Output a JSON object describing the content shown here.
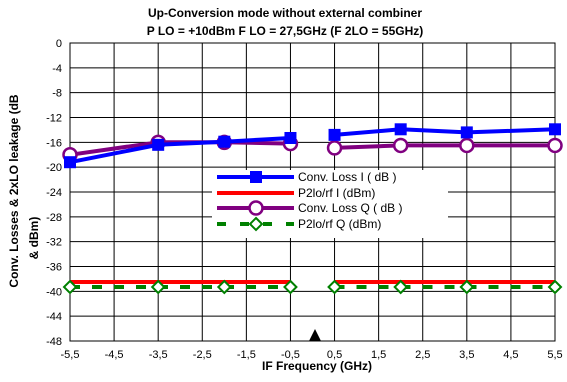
{
  "chart_data": {
    "type": "line",
    "title": "Up-Conversion mode without external combiner",
    "subtitle": "P LO = +10dBm F LO = 27,5GHz (F 2LO = 55GHz)",
    "xlabel": "IF Frequency (GHz)",
    "ylabel_line1": "Conv. Losses & 2xLO leakage (dB",
    "ylabel_line2": "& dBm)",
    "xlim": [
      -5.5,
      5.5
    ],
    "ylim": [
      -48,
      0
    ],
    "x_ticks": [
      -5.5,
      -4.5,
      -3.5,
      -2.5,
      -1.5,
      -0.5,
      0.5,
      1.5,
      2.5,
      3.5,
      4.5,
      5.5
    ],
    "x_tick_labels": [
      "-5,5",
      "-4,5",
      "-3,5",
      "-2,5",
      "-1,5",
      "-0,5",
      "0,5",
      "1,5",
      "2,5",
      "3,5",
      "4,5",
      "5,5"
    ],
    "y_ticks": [
      0,
      -4,
      -8,
      -12,
      -16,
      -20,
      -24,
      -28,
      -32,
      -36,
      -40,
      -44,
      -48
    ],
    "y_tick_labels": [
      "0",
      "-4",
      "-8",
      "-12",
      "-16",
      "-20",
      "-24",
      "-28",
      "-32",
      "-36",
      "-40",
      "-44",
      "-48"
    ],
    "grid": true,
    "legend_position": "center-right",
    "series": [
      {
        "name": "Conv. Loss I ( dB )",
        "color": "#0000ff",
        "marker": "square-filled",
        "style": "solid",
        "segments": [
          [
            [
              -5.5,
              -19.2
            ],
            [
              -3.5,
              -16.4
            ],
            [
              -2,
              -15.9
            ],
            [
              -0.5,
              -15.3
            ]
          ],
          [
            [
              0.5,
              -14.8
            ],
            [
              2,
              -13.9
            ],
            [
              3.5,
              -14.4
            ],
            [
              5.5,
              -13.9
            ]
          ]
        ]
      },
      {
        "name": "P2lo/rf I (dBm)",
        "color": "#ff0000",
        "marker": "none",
        "style": "solid",
        "segments": [
          [
            [
              -5.5,
              -38.5
            ],
            [
              -0.5,
              -38.5
            ]
          ],
          [
            [
              0.5,
              -38.5
            ],
            [
              5.5,
              -38.5
            ]
          ]
        ]
      },
      {
        "name": "Conv. Loss Q ( dB )",
        "color": "#800080",
        "marker": "circle-open",
        "style": "solid",
        "segments": [
          [
            [
              -5.5,
              -18.0
            ],
            [
              -3.5,
              -16.0
            ],
            [
              -2,
              -16.0
            ],
            [
              -0.5,
              -16.2
            ]
          ],
          [
            [
              0.5,
              -16.9
            ],
            [
              2,
              -16.5
            ],
            [
              3.5,
              -16.5
            ],
            [
              5.5,
              -16.5
            ]
          ]
        ]
      },
      {
        "name": "P2lo/rf Q (dBm)",
        "color": "#008000",
        "marker": "diamond-open",
        "style": "dashed",
        "segments": [
          [
            [
              -5.5,
              -39.3
            ],
            [
              -3.5,
              -39.3
            ],
            [
              -2,
              -39.3
            ],
            [
              -0.5,
              -39.3
            ]
          ],
          [
            [
              0.5,
              -39.3
            ],
            [
              2,
              -39.3
            ],
            [
              3.5,
              -39.3
            ],
            [
              5.5,
              -39.3
            ]
          ]
        ]
      }
    ]
  }
}
